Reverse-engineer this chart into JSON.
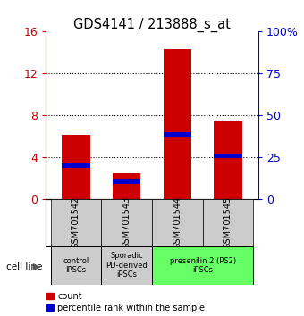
{
  "title": "GDS4141 / 213888_s_at",
  "samples": [
    "GSM701542",
    "GSM701543",
    "GSM701544",
    "GSM701545"
  ],
  "count_values": [
    6.1,
    2.5,
    14.3,
    7.5
  ],
  "percentile_values": [
    20.0,
    10.5,
    38.5,
    26.0
  ],
  "ylim_left": [
    0,
    16
  ],
  "ylim_right": [
    0,
    100
  ],
  "yticks_left": [
    0,
    4,
    8,
    12,
    16
  ],
  "yticks_left_labels": [
    "0",
    "4",
    "8",
    "12",
    "16"
  ],
  "yticks_right": [
    0,
    25,
    50,
    75,
    100
  ],
  "yticks_right_labels": [
    "0",
    "25",
    "50",
    "75",
    "100%"
  ],
  "bar_color": "#cc0000",
  "percentile_color": "#0000cc",
  "bar_width": 0.55,
  "group_info": [
    [
      0,
      0,
      "control\nIPSCs",
      "#cccccc"
    ],
    [
      1,
      1,
      "Sporadic\nPD-derived\niPSCs",
      "#cccccc"
    ],
    [
      2,
      3,
      "presenilin 2 (PS2)\niPSCs",
      "#66ff66"
    ]
  ],
  "cell_line_label": "cell line",
  "legend_count_label": "count",
  "legend_percentile_label": "percentile rank within the sample",
  "grid_color": "#000000",
  "grid_levels": [
    4,
    8,
    12
  ],
  "left_axis_color": "#cc0000",
  "right_axis_color": "#0000cc"
}
